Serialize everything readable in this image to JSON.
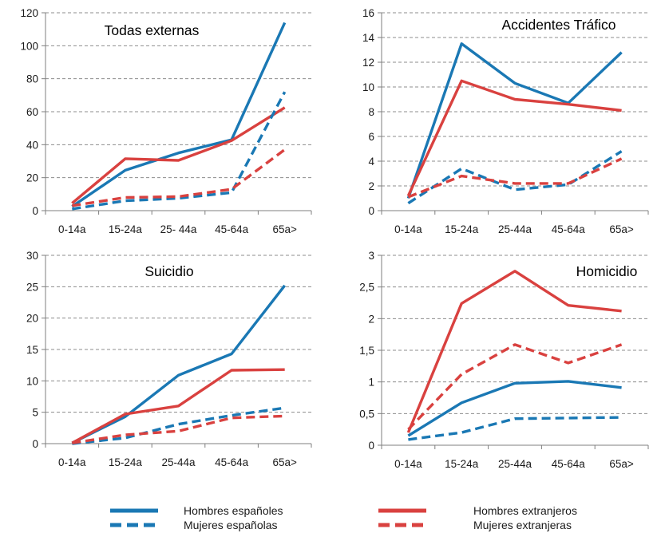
{
  "chart_data": [
    {
      "type": "line",
      "title": "Todas externas",
      "categories": [
        "0-14a",
        "15-24a",
        "25- 44a",
        "45-64a",
        "65a>"
      ],
      "ylim": [
        0,
        120
      ],
      "yticks": [
        "0",
        "20",
        "40",
        "60",
        "80",
        "100",
        "120"
      ],
      "grid": true,
      "series": [
        {
          "name": "Hombres españoles",
          "values": [
            2.5,
            24.5,
            35,
            43,
            114
          ]
        },
        {
          "name": "Hombres extranjeros",
          "values": [
            4.5,
            31.5,
            30.5,
            42.5,
            62.5
          ]
        },
        {
          "name": "Mujeres españolas",
          "values": [
            1,
            6,
            7.5,
            11,
            72
          ]
        },
        {
          "name": "Mujeres extranjeras",
          "values": [
            3,
            8,
            8.5,
            13,
            37
          ]
        }
      ]
    },
    {
      "type": "line",
      "title": "Accidentes Tráfico",
      "categories": [
        "0-14a",
        "15-24a",
        "25-44a",
        "45-64a",
        "65a>"
      ],
      "ylim": [
        0,
        16
      ],
      "yticks": [
        "0",
        "2",
        "4",
        "6",
        "8",
        "10",
        "12",
        "14",
        "16"
      ],
      "grid": true,
      "series": [
        {
          "name": "Hombres españoles",
          "values": [
            1,
            13.5,
            10.3,
            8.7,
            12.8
          ]
        },
        {
          "name": "Hombres extranjeros",
          "values": [
            1.2,
            10.5,
            9,
            8.6,
            8.1
          ]
        },
        {
          "name": "Mujeres españolas",
          "values": [
            0.6,
            3.4,
            1.7,
            2.1,
            4.8
          ]
        },
        {
          "name": "Mujeres extranjeras",
          "values": [
            1.1,
            2.8,
            2.2,
            2.2,
            4.2
          ]
        }
      ]
    },
    {
      "type": "line",
      "title": "Suicidio",
      "categories": [
        "0-14a",
        "15-24a",
        "25-44a",
        "45-64a",
        "65a>"
      ],
      "ylim": [
        0,
        30
      ],
      "yticks": [
        "0",
        "5",
        "10",
        "15",
        "20",
        "25",
        "30"
      ],
      "grid": true,
      "series": [
        {
          "name": "Hombres españoles",
          "values": [
            0.1,
            4.3,
            10.9,
            14.3,
            25.2
          ]
        },
        {
          "name": "Hombres extranjeros",
          "values": [
            0.1,
            4.7,
            6,
            11.7,
            11.8
          ]
        },
        {
          "name": "Mujeres españolas",
          "values": [
            0,
            0.9,
            3.1,
            4.5,
            5.7
          ]
        },
        {
          "name": "Mujeres extranjeras",
          "values": [
            0.1,
            1.4,
            2,
            4.1,
            4.4
          ]
        }
      ]
    },
    {
      "type": "line",
      "title": "Homicidio",
      "categories": [
        "0-14a",
        "15-24a",
        "25-44a",
        "45-64a",
        "65a>"
      ],
      "ylim": [
        0,
        3
      ],
      "yticks": [
        "0",
        "0,5",
        "1",
        "1,5",
        "2",
        "2,5",
        "3"
      ],
      "grid": true,
      "series": [
        {
          "name": "Hombres españoles",
          "values": [
            0.15,
            0.67,
            0.98,
            1.01,
            0.91
          ]
        },
        {
          "name": "Hombres extranjeros",
          "values": [
            0.2,
            2.24,
            2.75,
            2.21,
            2.12
          ]
        },
        {
          "name": "Mujeres españolas",
          "values": [
            0.09,
            0.2,
            0.42,
            0.43,
            0.44
          ]
        },
        {
          "name": "Mujeres extranjeras",
          "values": [
            0.25,
            1.12,
            1.59,
            1.3,
            1.59
          ]
        }
      ]
    }
  ],
  "legend": [
    {
      "label": "Hombres españoles",
      "color": "#1f77b4",
      "style": "solid"
    },
    {
      "label": "Hombres extranjeros",
      "color": "#d62728",
      "style": "solid"
    },
    {
      "label": "Mujeres españolas",
      "color": "#1f77b4",
      "style": "dashed"
    },
    {
      "label": "Mujeres extranjeras",
      "color": "#d62728",
      "style": "dashed"
    }
  ],
  "colors": {
    "hombres_espanoles": "#1a78b4",
    "hombres_extranjeros": "#d9413f",
    "mujeres_espanolas": "#1a78b4",
    "mujeres_extranjeras": "#d9413f"
  }
}
